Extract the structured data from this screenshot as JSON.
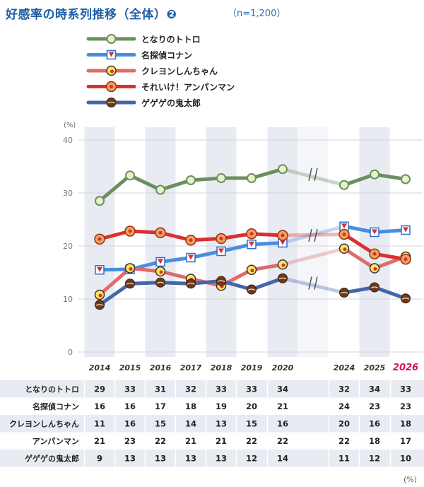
{
  "title": "好感率の時系列推移（全体）❷",
  "subtitle": "（n=1,200）",
  "unit": "(%)",
  "chart_data": {
    "type": "line",
    "categories": [
      "2014",
      "2015",
      "2016",
      "2017",
      "2018",
      "2019",
      "2020",
      "2024",
      "2025",
      "2026"
    ],
    "highlight_category": "2026",
    "ylim": [
      0,
      40
    ],
    "yticks": [
      0,
      10,
      20,
      30,
      40
    ],
    "grid": true,
    "legend_position": "top",
    "series": [
      {
        "name": "となりのトトロ",
        "table_label": "となりのトトロ",
        "color": "#6b8f5e",
        "values": [
          28.5,
          33.3,
          30.6,
          32.4,
          32.8,
          32.8,
          34.5,
          31.5,
          33.5,
          32.6
        ],
        "table_values": [
          29,
          33,
          31,
          32,
          33,
          33,
          34,
          32,
          34,
          33
        ]
      },
      {
        "name": "名探偵コナン",
        "table_label": "名探偵コナン",
        "color": "#4a8de0",
        "values": [
          15.5,
          15.6,
          17.0,
          17.8,
          19.0,
          20.3,
          20.6,
          23.7,
          22.6,
          23.0
        ],
        "table_values": [
          16,
          16,
          17,
          18,
          19,
          20,
          21,
          24,
          23,
          23
        ]
      },
      {
        "name": "クレヨンしんちゃん",
        "table_label": "クレヨンしんちゃん",
        "color": "#e06b6b",
        "values": [
          10.8,
          15.8,
          15.2,
          13.8,
          12.5,
          15.5,
          16.5,
          19.5,
          15.8,
          18.0
        ],
        "table_values": [
          11,
          16,
          15,
          14,
          13,
          15,
          16,
          20,
          16,
          18
        ]
      },
      {
        "name": "それいけ！アンパンマン",
        "table_label": "アンパンマン",
        "color": "#d93030",
        "values": [
          21.3,
          22.8,
          22.5,
          21.1,
          21.4,
          22.3,
          22.0,
          22.2,
          18.5,
          17.5
        ],
        "table_values": [
          21,
          23,
          22,
          21,
          21,
          22,
          22,
          22,
          18,
          17
        ]
      },
      {
        "name": "ゲゲゲの鬼太郎",
        "table_label": "ゲゲゲの鬼太郎",
        "color": "#4466a8",
        "values": [
          8.9,
          12.9,
          13.1,
          12.9,
          13.4,
          11.8,
          13.9,
          11.2,
          12.2,
          10.1
        ],
        "table_values": [
          9,
          13,
          13,
          13,
          13,
          12,
          14,
          11,
          12,
          10
        ]
      }
    ]
  }
}
